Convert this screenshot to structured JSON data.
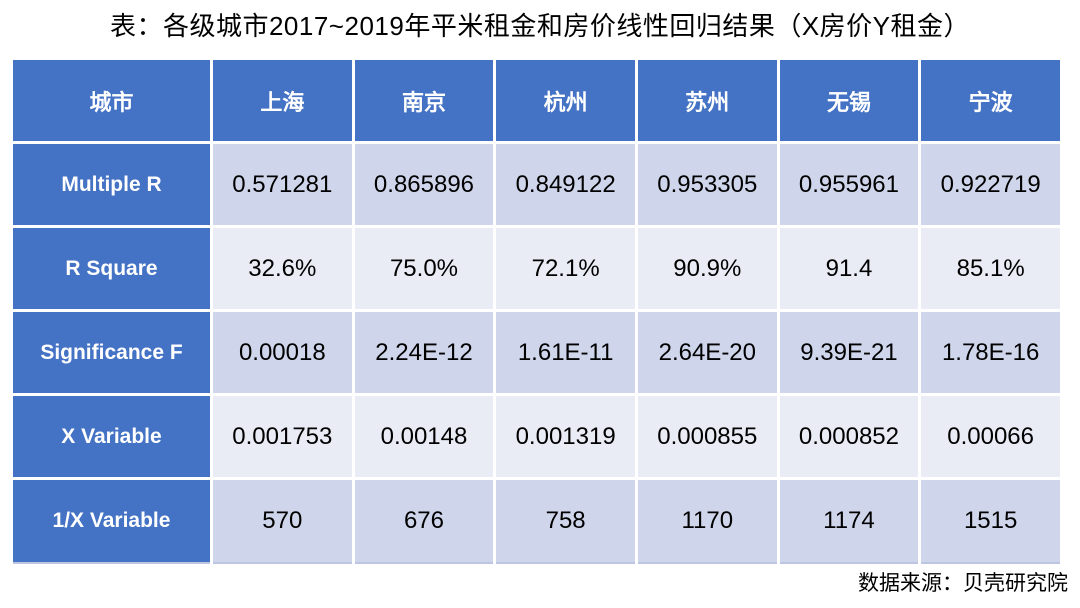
{
  "title": "表：各级城市2017~2019年平米租金和房价线性回归结果（X房价Y租金）",
  "footer": {
    "source_label": "数据来源：贝壳研究院"
  },
  "colors": {
    "header_bg": "#4472C4",
    "header_text": "#FFFFFF",
    "band_dark": "#CFD5EA",
    "band_light": "#E9EBF5",
    "body_text": "#000000"
  },
  "chart_data": {
    "type": "table",
    "title": "表：各级城市2017~2019年平米租金和房价线性回归结果（X房价Y租金）",
    "columns": [
      "城市",
      "上海",
      "南京",
      "杭州",
      "苏州",
      "无锡",
      "宁波"
    ],
    "rows": [
      {
        "label": "Multiple R",
        "values": [
          "0.571281",
          "0.865896",
          "0.849122",
          "0.953305",
          "0.955961",
          "0.922719"
        ]
      },
      {
        "label": "R Square",
        "values": [
          "32.6%",
          "75.0%",
          "72.1%",
          "90.9%",
          "91.4",
          "85.1%"
        ]
      },
      {
        "label": "Significance F",
        "values": [
          "0.00018",
          "2.24E-12",
          "1.61E-11",
          "2.64E-20",
          "9.39E-21",
          "1.78E-16"
        ]
      },
      {
        "label": "X Variable",
        "values": [
          "0.001753",
          "0.00148",
          "0.001319",
          "0.000855",
          "0.000852",
          "0.00066"
        ]
      },
      {
        "label": "1/X Variable",
        "values": [
          "570",
          "676",
          "758",
          "1170",
          "1174",
          "1515"
        ]
      }
    ],
    "source": "数据来源：贝壳研究院",
    "layout": {
      "banded_rows": true,
      "header_row": true,
      "emphasized_first_column": true
    }
  }
}
